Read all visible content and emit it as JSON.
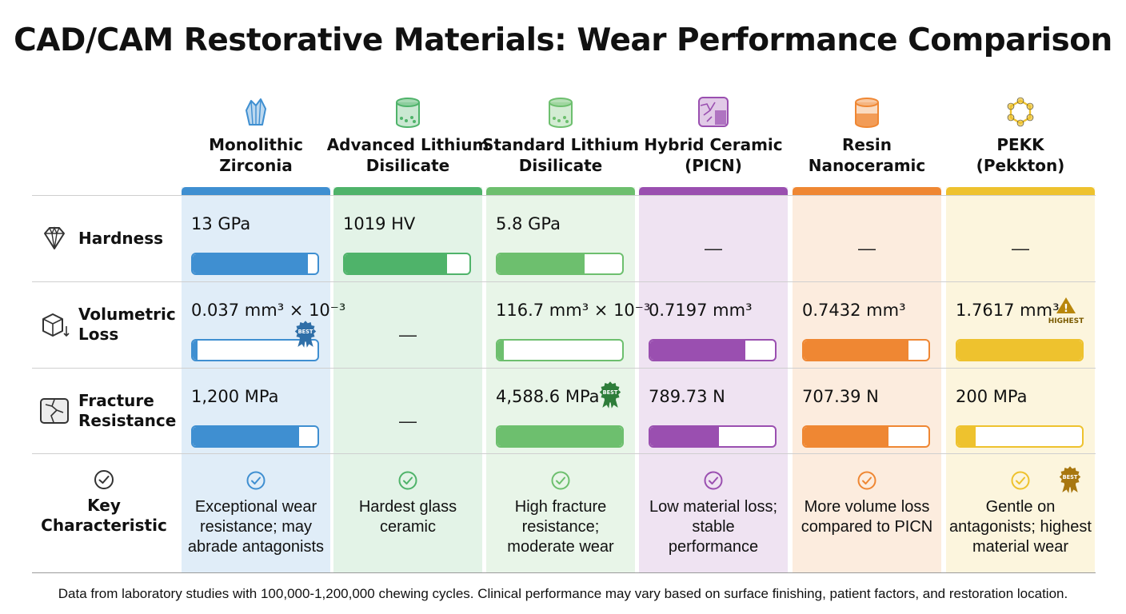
{
  "title": "CAD/CAM Restorative Materials: Wear Performance Comparison",
  "footnote": "Data from laboratory studies with 100,000-1,200,000 chewing cycles. Clinical performance may vary based on surface finishing, patient factors, and restoration location.",
  "colors": {
    "zirconia": "#3f8fd1",
    "advanced_ld": "#4fb36a",
    "standard_ld": "#6dbf6e",
    "picn": "#9a4fb0",
    "resin_nano": "#ef8733",
    "pekk": "#eec22e"
  },
  "row_labels": {
    "hardness": {
      "label": "Hardness",
      "icon": "diamond-icon"
    },
    "volumetric_loss": {
      "label": "Volumetric\nLoss",
      "icon": "cube-down-arrow-icon"
    },
    "fracture_resistance": {
      "label": "Fracture\nResistance",
      "icon": "cracked-tooth-icon"
    },
    "key_characteristic": {
      "label": "Key\nCharacteristic",
      "icon": "check-circle-icon"
    }
  },
  "chart_data": {
    "type": "table",
    "title": "CAD/CAM Restorative Materials: Wear Performance Comparison",
    "materials": [
      {
        "name": "Monolithic\nZirconia",
        "icon": "crystal-icon",
        "color": "#3f8fd1",
        "hardness": {
          "text": "13 GPa",
          "level": 0.92
        },
        "volumetric_loss": {
          "text": "0.037 mm³ × 10⁻³",
          "level": 0.03,
          "badge": "BEST"
        },
        "fracture_resistance": {
          "text": "1,200 MPa",
          "level": 0.85
        },
        "key": "Exceptional wear\nresistance; may\nabrade antagonists"
      },
      {
        "name": "Advanced Lithium\nDisilicate",
        "icon": "cylinder-icon",
        "color": "#4fb36a",
        "hardness": {
          "text": "1019 HV",
          "level": 0.82
        },
        "volumetric_loss": {
          "text": "—",
          "level": null
        },
        "fracture_resistance": {
          "text": "—",
          "level": null
        },
        "key": "Hardest glass\nceramic"
      },
      {
        "name": "Standard Lithium\nDisilicate",
        "icon": "cylinder-icon",
        "color": "#6dbf6e",
        "hardness": {
          "text": "5.8 GPa",
          "level": 0.7
        },
        "volumetric_loss": {
          "text": "116.7 mm³ × 10⁻³",
          "level": 0.05
        },
        "fracture_resistance": {
          "text": "4,588.6 MPa",
          "level": 1.0,
          "badge": "BEST"
        },
        "key": "High fracture\nresistance;\nmoderate wear"
      },
      {
        "name": "Hybrid Ceramic\n(PICN)",
        "icon": "hybrid-block-icon",
        "color": "#9a4fb0",
        "hardness": {
          "text": "—",
          "level": null
        },
        "volumetric_loss": {
          "text": "0.7197 mm³",
          "level": 0.76
        },
        "fracture_resistance": {
          "text": "789.73 N",
          "level": 0.55
        },
        "key": "Low material loss;\nstable\nperformance"
      },
      {
        "name": "Resin\nNanoceramic",
        "icon": "resin-block-icon",
        "color": "#ef8733",
        "hardness": {
          "text": "—",
          "level": null
        },
        "volumetric_loss": {
          "text": "0.7432 mm³",
          "level": 0.84
        },
        "fracture_resistance": {
          "text": "707.39 N",
          "level": 0.68
        },
        "key": "More volume loss\ncompared to PICN"
      },
      {
        "name": "PEKK\n(Pekkton)",
        "icon": "molecule-icon",
        "color": "#eec22e",
        "hardness": {
          "text": "—",
          "level": null
        },
        "volumetric_loss": {
          "text": "1.7617 mm³",
          "level": 1.0,
          "badge": "HIGHEST"
        },
        "fracture_resistance": {
          "text": "200 MPa",
          "level": 0.15
        },
        "key": "Gentle on\nantagonists; highest\nmaterial wear",
        "key_badge": "BEST"
      }
    ]
  }
}
